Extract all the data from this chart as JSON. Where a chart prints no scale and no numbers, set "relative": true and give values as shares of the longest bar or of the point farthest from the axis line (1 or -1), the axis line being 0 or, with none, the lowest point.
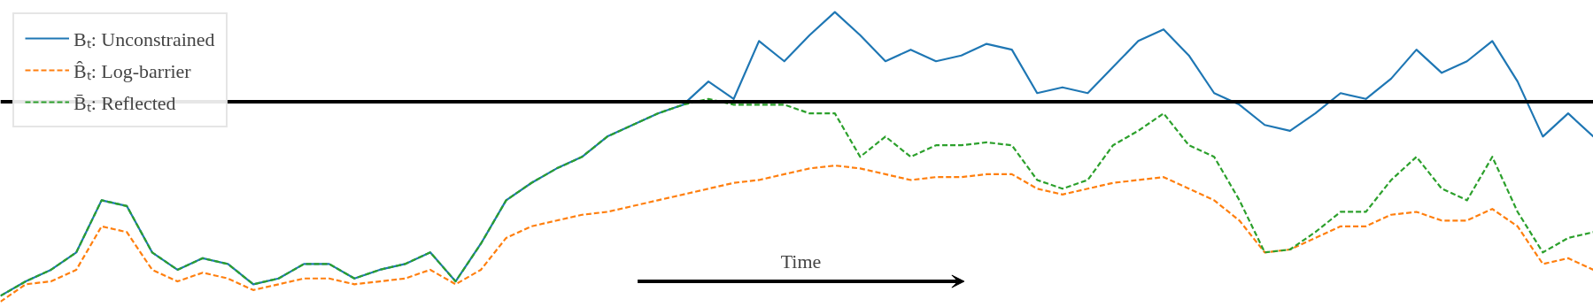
{
  "chart_data": {
    "type": "line",
    "relative": true,
    "legend": "top left",
    "grid": false,
    "categories": [
      null,
      null,
      null,
      null,
      null,
      null,
      null,
      null,
      null,
      null,
      null,
      null,
      null,
      null,
      null,
      null,
      null,
      null,
      null,
      null,
      null,
      null,
      null,
      null,
      null,
      null,
      null,
      null,
      null,
      null,
      null,
      null,
      null,
      null,
      null,
      null,
      null,
      null,
      null,
      null,
      null,
      null,
      null,
      null,
      null,
      null,
      null,
      null,
      null,
      null,
      null,
      null,
      null,
      null,
      null,
      null,
      null,
      null,
      null,
      null,
      null,
      null,
      null,
      null
    ],
    "series": [
      {
        "name": "Bₜ: Unconstrained",
        "color": "#1f77b4",
        "line_style": "solid",
        "values": [
          0.02,
          0.07,
          0.11,
          0.17,
          0.35,
          0.33,
          0.17,
          0.11,
          0.15,
          0.13,
          0.06,
          0.08,
          0.13,
          0.13,
          0.08,
          0.11,
          0.13,
          0.17,
          0.07,
          0.2,
          0.35,
          0.41,
          0.46,
          0.5,
          0.57,
          0.61,
          0.65,
          0.68,
          0.76,
          0.7,
          0.9,
          0.83,
          0.92,
          1.0,
          0.92,
          0.83,
          0.87,
          0.83,
          0.85,
          0.89,
          0.87,
          0.72,
          0.74,
          0.72,
          0.81,
          0.9,
          0.94,
          0.85,
          0.72,
          0.68,
          0.61,
          0.59,
          0.65,
          0.72,
          0.7,
          0.77,
          0.87,
          0.79,
          0.83,
          0.9,
          0.76,
          0.57,
          0.65,
          0.57
        ]
      },
      {
        "name": "B̂ₜ: Log-barrier",
        "color": "#ff7f0e",
        "line_style": "dashed",
        "values": [
          0.0,
          0.06,
          0.07,
          0.11,
          0.26,
          0.24,
          0.11,
          0.07,
          0.1,
          0.08,
          0.04,
          0.06,
          0.08,
          0.08,
          0.06,
          0.07,
          0.08,
          0.11,
          0.06,
          0.11,
          0.22,
          0.26,
          0.28,
          0.3,
          0.31,
          0.33,
          0.35,
          0.37,
          0.39,
          0.41,
          0.42,
          0.44,
          0.46,
          0.47,
          0.46,
          0.44,
          0.42,
          0.43,
          0.43,
          0.44,
          0.44,
          0.39,
          0.37,
          0.39,
          0.41,
          0.42,
          0.43,
          0.39,
          0.35,
          0.28,
          0.17,
          0.18,
          0.22,
          0.26,
          0.26,
          0.3,
          0.31,
          0.28,
          0.28,
          0.32,
          0.26,
          0.13,
          0.15,
          0.11
        ]
      },
      {
        "name": "B̄ₜ: Reflected",
        "color": "#2ca02c",
        "line_style": "dashed",
        "values": [
          0.02,
          0.07,
          0.11,
          0.17,
          0.35,
          0.33,
          0.17,
          0.11,
          0.15,
          0.13,
          0.06,
          0.08,
          0.13,
          0.13,
          0.08,
          0.11,
          0.13,
          0.17,
          0.07,
          0.2,
          0.35,
          0.41,
          0.46,
          0.5,
          0.57,
          0.61,
          0.65,
          0.68,
          0.7,
          0.68,
          0.68,
          0.68,
          0.65,
          0.65,
          0.5,
          0.57,
          0.5,
          0.54,
          0.54,
          0.55,
          0.54,
          0.42,
          0.39,
          0.42,
          0.54,
          0.59,
          0.65,
          0.54,
          0.5,
          0.35,
          0.17,
          0.18,
          0.24,
          0.31,
          0.31,
          0.42,
          0.5,
          0.39,
          0.35,
          0.5,
          0.31,
          0.17,
          0.22,
          0.24
        ]
      }
    ],
    "ref_lines": [
      {
        "axis": "y",
        "value": 0.69,
        "color": "#000000",
        "line_style": "solid"
      }
    ],
    "annotations": [
      "Time"
    ]
  }
}
